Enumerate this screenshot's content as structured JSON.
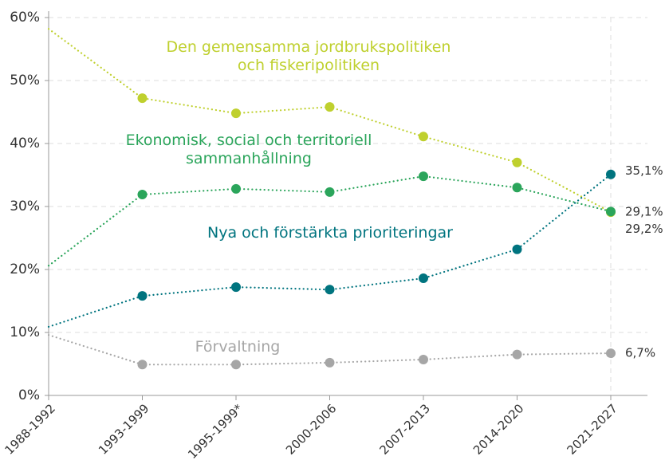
{
  "chart_data": {
    "type": "line",
    "categories": [
      "1988-1992",
      "1993-1999",
      "1995-1999*",
      "2000-2006",
      "2007-2013",
      "2014-2020",
      "2021-2027"
    ],
    "ylim": [
      0,
      60
    ],
    "yticks": [
      {
        "value": 0,
        "label": "0%"
      },
      {
        "value": 10,
        "label": "10%"
      },
      {
        "value": 20,
        "label": "20%"
      },
      {
        "value": 30,
        "label": "30%"
      },
      {
        "value": 40,
        "label": "40%"
      },
      {
        "value": 50,
        "label": "50%"
      },
      {
        "value": 60,
        "label": "60%"
      }
    ],
    "grid": true,
    "series": [
      {
        "name": "Den gemensamma jordbrukspolitiken och fiskeripolitiken",
        "color": "#bfd02e",
        "values": [
          58.2,
          47.2,
          44.8,
          45.8,
          41.1,
          37.0,
          29.1
        ],
        "value_labels": [
          null,
          null,
          null,
          null,
          null,
          null,
          "29,1%"
        ]
      },
      {
        "name": "Ekonomisk, social och territoriell sammanhållning",
        "color": "#2ba55b",
        "values": [
          20.6,
          31.9,
          32.8,
          32.3,
          34.8,
          33.0,
          29.2
        ],
        "value_labels": [
          null,
          null,
          null,
          null,
          null,
          null,
          "29,2%"
        ]
      },
      {
        "name": "Nya och förstärkta prioriteringar",
        "color": "#00747f",
        "values": [
          10.9,
          15.8,
          17.2,
          16.8,
          18.6,
          23.2,
          35.1
        ],
        "value_labels": [
          null,
          null,
          null,
          null,
          null,
          null,
          "35,1%"
        ]
      },
      {
        "name": "Förvaltning",
        "color": "#a6a6a6",
        "values": [
          9.6,
          4.9,
          4.9,
          5.2,
          5.7,
          6.5,
          6.7
        ],
        "value_labels": [
          null,
          null,
          null,
          null,
          null,
          null,
          "6,7%"
        ]
      }
    ]
  }
}
